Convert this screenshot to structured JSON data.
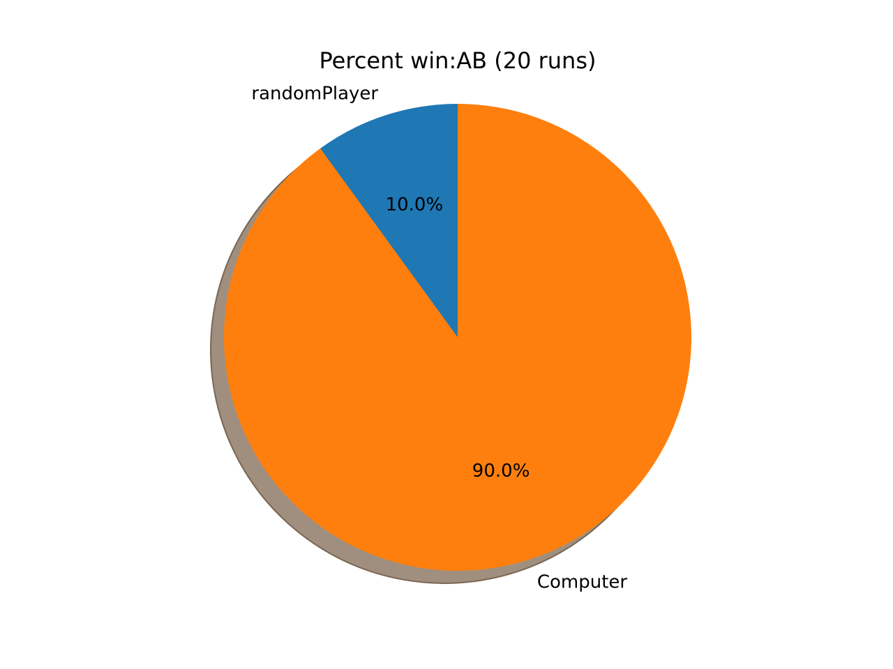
{
  "chart_data": {
    "type": "pie",
    "title": "Percent win:AB (20 runs)",
    "slices": [
      {
        "name": "randomPlayer",
        "value": 10.0,
        "pct_label": "10.0%",
        "color": "#1f77b4"
      },
      {
        "name": "Computer",
        "value": 90.0,
        "pct_label": "90.0%",
        "color": "#ff7f0e"
      }
    ],
    "start_angle_deg": 90,
    "direction": "counterclockwise",
    "shadow": true,
    "shadow_color": "#a08f7e"
  }
}
